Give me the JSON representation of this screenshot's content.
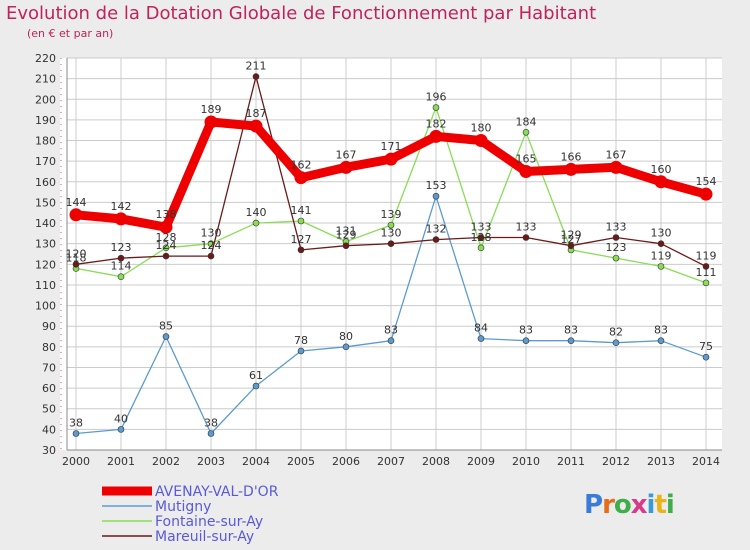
{
  "title": "Evolution de la Dotation Globale de Fonctionnement par Habitant",
  "subtitle": "(en € et par an)",
  "logo_text": "Proxiti",
  "chart_data": {
    "type": "line",
    "title": "Evolution de la Dotation Globale de Fonctionnement par Habitant",
    "subtitle": "(en € et par an)",
    "xlabel": "",
    "ylabel": "",
    "ylim": [
      30,
      220
    ],
    "yticks": [
      30,
      40,
      50,
      60,
      70,
      80,
      90,
      100,
      110,
      120,
      130,
      140,
      150,
      160,
      170,
      180,
      190,
      200,
      210,
      220
    ],
    "grid": true,
    "legend_position": "bottom-left",
    "categories": [
      "2000",
      "2001",
      "2002",
      "2003",
      "2004",
      "2005",
      "2006",
      "2007",
      "2008",
      "2009",
      "2010",
      "2011",
      "2012",
      "2013",
      "2014"
    ],
    "series": [
      {
        "name": "AVENAY-VAL-D'OR",
        "color": "#ee0000",
        "legend_color": "#5a5ad8",
        "values": [
          144,
          142,
          138,
          189,
          187,
          162,
          167,
          171,
          182,
          180,
          165,
          166,
          167,
          160,
          154
        ],
        "labels": [
          "144",
          "142",
          "138",
          "189",
          "187",
          "162",
          "167",
          "171",
          "182",
          "180",
          "165",
          "166",
          "167",
          "160",
          "154"
        ]
      },
      {
        "name": "Mutigny",
        "color": "#5b9bd0",
        "legend_color": "#5a5ad8",
        "values": [
          38,
          40,
          85,
          38,
          61,
          78,
          80,
          83,
          153,
          84,
          83,
          83,
          82,
          83,
          75
        ],
        "labels": [
          "38",
          "40",
          "85",
          "38",
          "61",
          "78",
          "80",
          "83",
          "153",
          "84",
          "83",
          "83",
          "82",
          "83",
          "75"
        ]
      },
      {
        "name": "Fontaine-sur-Ay",
        "color": "#88dd55",
        "legend_color": "#5a5ad8",
        "values": [
          118,
          114,
          128,
          130,
          140,
          141,
          131,
          139,
          196,
          128,
          184,
          127,
          123,
          119,
          111
        ],
        "labels": [
          "118",
          "114",
          "128",
          "130",
          "140",
          "141",
          "131",
          "139",
          "196",
          "128",
          "184",
          "127",
          "123",
          "119",
          "111"
        ]
      },
      {
        "name": "Mareuil-sur-Ay",
        "color": "#6b1a1a",
        "legend_color": "#5a5ad8",
        "values": [
          120,
          123,
          124,
          124,
          211,
          127,
          129,
          130,
          132,
          133,
          133,
          129,
          133,
          130,
          119
        ],
        "labels": [
          "120",
          "123",
          "124",
          "124",
          "211",
          "127",
          "129",
          "130",
          "132",
          "133",
          "133",
          "129",
          "133",
          "130",
          "119"
        ]
      }
    ]
  }
}
